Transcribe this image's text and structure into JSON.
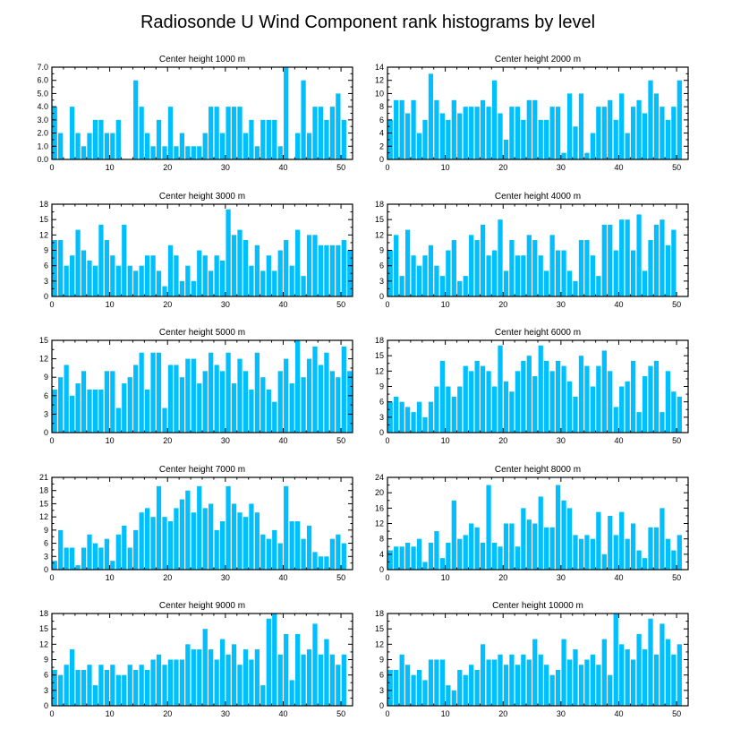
{
  "title": "Radiosonde U Wind Component rank histograms by level",
  "bar_color": "#00bfff",
  "chart_data": [
    {
      "type": "bar",
      "title": "Center height 1000 m",
      "xlim": [
        0,
        52
      ],
      "xticks": [
        0,
        10,
        20,
        30,
        40,
        50
      ],
      "ylim": [
        0,
        7
      ],
      "yticks": [
        0,
        1,
        2,
        3,
        4,
        5,
        6,
        7
      ],
      "ytick_labels": [
        "0.0",
        "1.0",
        "2.0",
        "3.0",
        "4.0",
        "5.0",
        "6.0",
        "7.0"
      ],
      "values": [
        4,
        2,
        0,
        4,
        2,
        1,
        2,
        3,
        3,
        2,
        2,
        3,
        0,
        0,
        6,
        4,
        2,
        1,
        3,
        1,
        4,
        1,
        2,
        1,
        1,
        1,
        2,
        4,
        4,
        2,
        4,
        4,
        4,
        2,
        3,
        1,
        3,
        3,
        3,
        1,
        7,
        0,
        2,
        6,
        2,
        4,
        4,
        3,
        4,
        5,
        3
      ]
    },
    {
      "type": "bar",
      "title": "Center height 2000 m",
      "xlim": [
        0,
        52
      ],
      "xticks": [
        0,
        10,
        20,
        30,
        40,
        50
      ],
      "ylim": [
        0,
        14
      ],
      "yticks": [
        0,
        2,
        4,
        6,
        8,
        10,
        12,
        14
      ],
      "ytick_labels": [
        "0",
        "2",
        "4",
        "6",
        "8",
        "10",
        "12",
        "14"
      ],
      "values": [
        6,
        9,
        9,
        7,
        9,
        4,
        6,
        13,
        9,
        7,
        6,
        9,
        7,
        8,
        8,
        8,
        9,
        8,
        12,
        7,
        3,
        8,
        8,
        6,
        9,
        9,
        6,
        6,
        8,
        8,
        1,
        10,
        5,
        10,
        1,
        4,
        8,
        8,
        9,
        6,
        10,
        4,
        8,
        9,
        7,
        12,
        10,
        8,
        6,
        8,
        12
      ]
    },
    {
      "type": "bar",
      "title": "Center height 3000 m",
      "xlim": [
        0,
        52
      ],
      "xticks": [
        0,
        10,
        20,
        30,
        40,
        50
      ],
      "ylim": [
        0,
        18
      ],
      "yticks": [
        0,
        3,
        6,
        9,
        12,
        15,
        18
      ],
      "ytick_labels": [
        "0",
        "3",
        "6",
        "9",
        "12",
        "15",
        "18"
      ],
      "values": [
        11,
        11,
        6,
        8,
        13,
        9,
        7,
        6,
        14,
        11,
        8,
        6,
        14,
        6,
        5,
        6,
        8,
        8,
        5,
        2,
        10,
        8,
        3,
        6,
        3,
        9,
        8,
        5,
        8,
        7,
        17,
        12,
        13,
        11,
        6,
        10,
        5,
        8,
        5,
        9,
        11,
        6,
        13,
        4,
        12,
        12,
        10,
        10,
        10,
        10,
        11,
        9
      ]
    },
    {
      "type": "bar",
      "title": "Center height 4000 m",
      "xlim": [
        0,
        52
      ],
      "xticks": [
        0,
        10,
        20,
        30,
        40,
        50
      ],
      "ylim": [
        0,
        18
      ],
      "yticks": [
        0,
        3,
        6,
        9,
        12,
        15,
        18
      ],
      "ytick_labels": [
        "0",
        "3",
        "6",
        "9",
        "12",
        "15",
        "18"
      ],
      "values": [
        9,
        12,
        4,
        13,
        8,
        6,
        8,
        10,
        6,
        4,
        9,
        11,
        3,
        4,
        12,
        11,
        14,
        8,
        9,
        15,
        5,
        11,
        8,
        8,
        12,
        11,
        8,
        5,
        12,
        9,
        9,
        5,
        3,
        11,
        11,
        8,
        4,
        14,
        14,
        9,
        15,
        15,
        9,
        16,
        5,
        11,
        14,
        15,
        10,
        13
      ]
    },
    {
      "type": "bar",
      "title": "Center height 5000 m",
      "xlim": [
        0,
        52
      ],
      "xticks": [
        0,
        10,
        20,
        30,
        40,
        50
      ],
      "ylim": [
        0,
        15
      ],
      "yticks": [
        0,
        3,
        6,
        9,
        12,
        15
      ],
      "ytick_labels": [
        "0",
        "3",
        "6",
        "9",
        "12",
        "15"
      ],
      "values": [
        7,
        9,
        11,
        6,
        8,
        10,
        7,
        7,
        7,
        10,
        10,
        4,
        8,
        9,
        11,
        13,
        7,
        13,
        13,
        4,
        11,
        11,
        9,
        12,
        12,
        8,
        10,
        13,
        11,
        10,
        13,
        8,
        12,
        10,
        7,
        13,
        9,
        7,
        5,
        10,
        12,
        8,
        15,
        9,
        12,
        14,
        11,
        13,
        10,
        9,
        14,
        10
      ]
    },
    {
      "type": "bar",
      "title": "Center height 6000 m",
      "xlim": [
        0,
        52
      ],
      "xticks": [
        0,
        10,
        20,
        30,
        40,
        50
      ],
      "ylim": [
        0,
        18
      ],
      "yticks": [
        0,
        3,
        6,
        9,
        12,
        15,
        18
      ],
      "ytick_labels": [
        "0",
        "3",
        "6",
        "9",
        "12",
        "15",
        "18"
      ],
      "values": [
        6,
        7,
        6,
        5,
        4,
        6,
        3,
        6,
        9,
        14,
        9,
        7,
        9,
        13,
        12,
        14,
        13,
        12,
        9,
        17,
        10,
        8,
        12,
        14,
        15,
        11,
        17,
        14,
        12,
        14,
        13,
        10,
        7,
        15,
        13,
        9,
        13,
        16,
        12,
        5,
        9,
        10,
        14,
        4,
        11,
        13,
        14,
        4,
        12,
        8,
        7
      ]
    },
    {
      "type": "bar",
      "title": "Center height 7000 m",
      "xlim": [
        0,
        52
      ],
      "xticks": [
        0,
        10,
        20,
        30,
        40,
        50
      ],
      "ylim": [
        0,
        21
      ],
      "yticks": [
        0,
        3,
        6,
        9,
        12,
        15,
        18,
        21
      ],
      "ytick_labels": [
        "0",
        "3",
        "6",
        "9",
        "12",
        "15",
        "18",
        "21"
      ],
      "values": [
        2,
        9,
        5,
        5,
        1,
        5,
        8,
        6,
        5,
        7,
        2,
        8,
        10,
        5,
        9,
        13,
        14,
        12,
        19,
        12,
        11,
        14,
        16,
        18,
        13,
        19,
        14,
        15,
        9,
        11,
        19,
        15,
        13,
        12,
        15,
        13,
        8,
        7,
        9,
        6,
        19,
        11,
        11,
        7,
        10,
        4,
        3,
        3,
        7,
        8,
        6
      ]
    },
    {
      "type": "bar",
      "title": "Center height 8000 m",
      "xlim": [
        0,
        52
      ],
      "xticks": [
        0,
        10,
        20,
        30,
        40,
        50
      ],
      "ylim": [
        0,
        24
      ],
      "yticks": [
        0,
        4,
        8,
        12,
        16,
        20,
        24
      ],
      "ytick_labels": [
        "0",
        "4",
        "8",
        "12",
        "16",
        "20",
        "24"
      ],
      "values": [
        5,
        6,
        6,
        7,
        6,
        8,
        2,
        7,
        10,
        3,
        7,
        18,
        8,
        9,
        12,
        11,
        7,
        22,
        7,
        6,
        12,
        12,
        6,
        16,
        13,
        12,
        19,
        11,
        11,
        22,
        18,
        16,
        9,
        8,
        9,
        8,
        15,
        4,
        14,
        9,
        15,
        8,
        12,
        5,
        3,
        11,
        11,
        16,
        8,
        5,
        9
      ]
    },
    {
      "type": "bar",
      "title": "Center height 9000 m",
      "xlim": [
        0,
        52
      ],
      "xticks": [
        0,
        10,
        20,
        30,
        40,
        50
      ],
      "ylim": [
        0,
        18
      ],
      "yticks": [
        0,
        3,
        6,
        9,
        12,
        15,
        18
      ],
      "ytick_labels": [
        "0",
        "3",
        "6",
        "9",
        "12",
        "15",
        "18"
      ],
      "values": [
        7,
        6,
        8,
        11,
        7,
        7,
        8,
        4,
        8,
        7,
        8,
        6,
        6,
        8,
        7,
        8,
        7,
        9,
        10,
        8,
        9,
        9,
        9,
        12,
        11,
        11,
        15,
        11,
        9,
        13,
        10,
        12,
        8,
        11,
        9,
        11,
        4,
        17,
        18,
        10,
        14,
        5,
        14,
        10,
        11,
        16,
        10,
        13,
        10,
        8,
        10
      ]
    },
    {
      "type": "bar",
      "title": "Center height 10000 m",
      "xlim": [
        0,
        52
      ],
      "xticks": [
        0,
        10,
        20,
        30,
        40,
        50
      ],
      "ylim": [
        0,
        18
      ],
      "yticks": [
        0,
        3,
        6,
        9,
        12,
        15,
        18
      ],
      "ytick_labels": [
        "0",
        "3",
        "6",
        "9",
        "12",
        "15",
        "18"
      ],
      "values": [
        7,
        7,
        10,
        8,
        6,
        7,
        5,
        9,
        9,
        9,
        4,
        3,
        7,
        6,
        8,
        7,
        12,
        9,
        9,
        10,
        8,
        10,
        8,
        10,
        9,
        13,
        10,
        8,
        6,
        7,
        13,
        9,
        11,
        8,
        9,
        10,
        8,
        13,
        6,
        18,
        12,
        11,
        9,
        14,
        11,
        17,
        10,
        16,
        13,
        10,
        12
      ]
    }
  ]
}
